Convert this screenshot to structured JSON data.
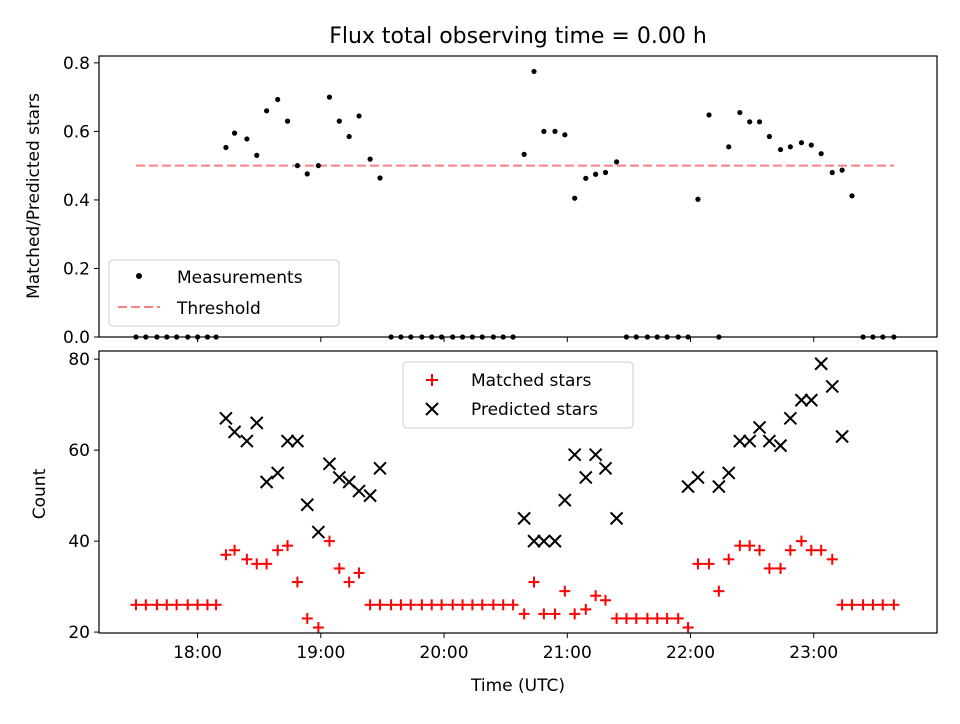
{
  "chart_data": [
    {
      "type": "scatter",
      "title": "Flux total observing time = 0.00 h",
      "xlabel": "",
      "ylabel": "Matched/Predicted stars",
      "xlim": [
        17.2,
        24.0
      ],
      "ylim": [
        0.0,
        0.82
      ],
      "yticks": [
        0.0,
        0.2,
        0.4,
        0.6,
        0.8
      ],
      "ytick_labels": [
        "0.0",
        "0.2",
        "0.4",
        "0.6",
        "0.8"
      ],
      "xticks": [
        18,
        19,
        20,
        21,
        22,
        23
      ],
      "legend_position": "lower-left",
      "legend": [
        "Measurements",
        "Threshold"
      ],
      "threshold": 0.5,
      "threshold_range": [
        17.5,
        23.65
      ],
      "threshold_color": "#ff7f7f",
      "series": [
        {
          "name": "Measurements",
          "color": "#000000",
          "x": [
            17.5,
            17.58,
            17.67,
            17.75,
            17.83,
            17.92,
            18.0,
            18.08,
            18.15,
            18.23,
            18.3,
            18.4,
            18.48,
            18.56,
            18.65,
            18.73,
            18.81,
            18.89,
            18.98,
            19.07,
            19.15,
            19.23,
            19.31,
            19.4,
            19.48,
            19.57,
            19.65,
            19.73,
            19.82,
            19.9,
            19.98,
            20.07,
            20.15,
            20.23,
            20.31,
            20.4,
            20.48,
            20.56,
            20.65,
            20.73,
            20.81,
            20.9,
            20.98,
            21.06,
            21.15,
            21.23,
            21.31,
            21.4,
            21.48,
            21.56,
            21.65,
            21.73,
            21.81,
            21.9,
            21.98,
            22.06,
            22.15,
            22.23,
            22.31,
            22.4,
            22.48,
            22.56,
            22.64,
            22.73,
            22.81,
            22.9,
            22.98,
            23.06,
            23.15,
            23.23,
            23.31,
            23.4,
            23.48,
            23.56,
            23.65
          ],
          "y": [
            0,
            0,
            0,
            0,
            0,
            0,
            0,
            0,
            0,
            0.553,
            0.595,
            0.578,
            0.53,
            0.66,
            0.693,
            0.63,
            0.5,
            0.476,
            0.5,
            0.7,
            0.63,
            0.585,
            0.645,
            0.519,
            0.464,
            0,
            0,
            0,
            0,
            0,
            0,
            0,
            0,
            0,
            0,
            0,
            0,
            0,
            0.533,
            0.775,
            0.6,
            0.6,
            0.59,
            0.405,
            0.463,
            0.475,
            0.48,
            0.511,
            0,
            0,
            0,
            0,
            0,
            0,
            0,
            0.402,
            0.648,
            0,
            0.555,
            0.655,
            0.628,
            0.628,
            0.585,
            0.547,
            0.555,
            0.567,
            0.56,
            0.535,
            0.48,
            0.487,
            0.412,
            0,
            0,
            0,
            0
          ]
        }
      ]
    },
    {
      "type": "scatter",
      "title": "",
      "xlabel": "Time (UTC)",
      "ylabel": "Count",
      "xlim": [
        17.2,
        24.0
      ],
      "ylim": [
        19.8,
        81.8
      ],
      "yticks": [
        20,
        40,
        60,
        80
      ],
      "ytick_labels": [
        "20",
        "40",
        "60",
        "80"
      ],
      "xticks": [
        18,
        19,
        20,
        21,
        22,
        23
      ],
      "xtick_labels": [
        "18:00",
        "19:00",
        "20:00",
        "21:00",
        "22:00",
        "23:00"
      ],
      "legend_position": "upper-center",
      "legend": [
        "Matched stars",
        "Predicted stars"
      ],
      "series": [
        {
          "name": "Matched stars",
          "marker": "+",
          "color": "#ff0000",
          "x": [
            17.5,
            17.58,
            17.67,
            17.75,
            17.83,
            17.92,
            18.0,
            18.08,
            18.15,
            18.23,
            18.3,
            18.4,
            18.48,
            18.56,
            18.65,
            18.73,
            18.81,
            18.89,
            18.98,
            19.07,
            19.15,
            19.23,
            19.31,
            19.4,
            19.48,
            19.57,
            19.65,
            19.73,
            19.82,
            19.9,
            19.98,
            20.07,
            20.15,
            20.23,
            20.31,
            20.4,
            20.48,
            20.56,
            20.65,
            20.73,
            20.81,
            20.9,
            20.98,
            21.06,
            21.15,
            21.23,
            21.31,
            21.4,
            21.48,
            21.56,
            21.65,
            21.73,
            21.81,
            21.9,
            21.98,
            22.06,
            22.15,
            22.23,
            22.31,
            22.4,
            22.48,
            22.56,
            22.64,
            22.73,
            22.81,
            22.9,
            22.98,
            23.06,
            23.15,
            23.23,
            23.31,
            23.4,
            23.48,
            23.56,
            23.65
          ],
          "y": [
            26,
            26,
            26,
            26,
            26,
            26,
            26,
            26,
            26,
            37,
            38,
            36,
            35,
            35,
            38,
            39,
            31,
            23,
            21,
            40,
            34,
            31,
            33,
            26,
            26,
            26,
            26,
            26,
            26,
            26,
            26,
            26,
            26,
            26,
            26,
            26,
            26,
            26,
            24,
            31,
            24,
            24,
            29,
            24,
            25,
            28,
            27,
            23,
            23,
            23,
            23,
            23,
            23,
            23,
            21,
            35,
            35,
            29,
            36,
            39,
            39,
            38,
            34,
            34,
            38,
            40,
            38,
            38,
            36,
            26,
            26,
            26,
            26,
            26,
            26
          ]
        },
        {
          "name": "Predicted stars",
          "marker": "x",
          "color": "#000000",
          "x": [
            18.23,
            18.3,
            18.4,
            18.48,
            18.56,
            18.65,
            18.73,
            18.81,
            18.89,
            18.98,
            19.07,
            19.15,
            19.23,
            19.31,
            19.4,
            19.48,
            20.65,
            20.73,
            20.81,
            20.9,
            20.98,
            21.06,
            21.15,
            21.23,
            21.31,
            21.4,
            21.98,
            22.06,
            22.23,
            22.31,
            22.4,
            22.48,
            22.56,
            22.64,
            22.73,
            22.81,
            22.9,
            22.98,
            23.06,
            23.15,
            23.23
          ],
          "y": [
            67,
            64,
            62,
            66,
            53,
            55,
            62,
            62,
            48,
            42,
            57,
            54,
            53,
            51,
            50,
            56,
            45,
            40,
            40,
            40,
            49,
            59,
            54,
            59,
            56,
            45,
            52,
            54,
            52,
            55,
            62,
            62,
            65,
            62,
            61,
            67,
            71,
            71,
            79,
            74,
            63
          ]
        }
      ]
    }
  ]
}
